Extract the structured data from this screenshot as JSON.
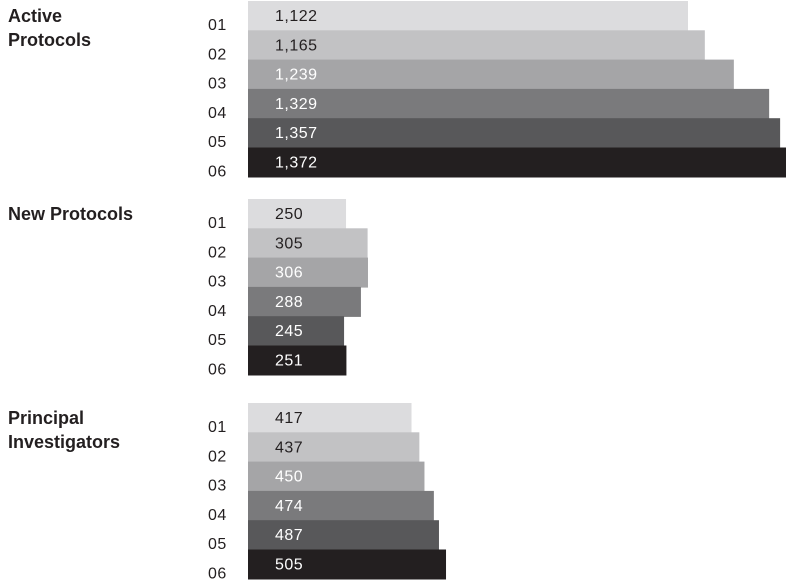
{
  "chart_data": {
    "type": "bar",
    "orientation": "horizontal",
    "grid": false,
    "legend": "none",
    "colors": [
      "#dcdcde",
      "#c2c2c4",
      "#a5a5a7",
      "#7a7a7c",
      "#58585a",
      "#231f20"
    ],
    "value_text_colors": [
      "#231f20",
      "#231f20",
      "#ffffff",
      "#ffffff",
      "#ffffff",
      "#ffffff"
    ],
    "groups": [
      {
        "title": [
          "Active",
          "Protocols"
        ],
        "categories": [
          "01",
          "02",
          "03",
          "04",
          "05",
          "06"
        ],
        "values": [
          1122,
          1165,
          1239,
          1329,
          1357,
          1372
        ],
        "value_labels": [
          "1,122",
          "1,165",
          "1,239",
          "1,329",
          "1,357",
          "1,372"
        ]
      },
      {
        "title": [
          "New Protocols"
        ],
        "categories": [
          "01",
          "02",
          "03",
          "04",
          "05",
          "06"
        ],
        "values": [
          250,
          305,
          306,
          288,
          245,
          251
        ],
        "value_labels": [
          "250",
          "305",
          "306",
          "288",
          "245",
          "251"
        ]
      },
      {
        "title": [
          "Principal",
          "Investigators"
        ],
        "categories": [
          "01",
          "02",
          "03",
          "04",
          "05",
          "06"
        ],
        "values": [
          417,
          437,
          450,
          474,
          487,
          505
        ],
        "value_labels": [
          "417",
          "437",
          "450",
          "474",
          "487",
          "505"
        ]
      }
    ]
  }
}
